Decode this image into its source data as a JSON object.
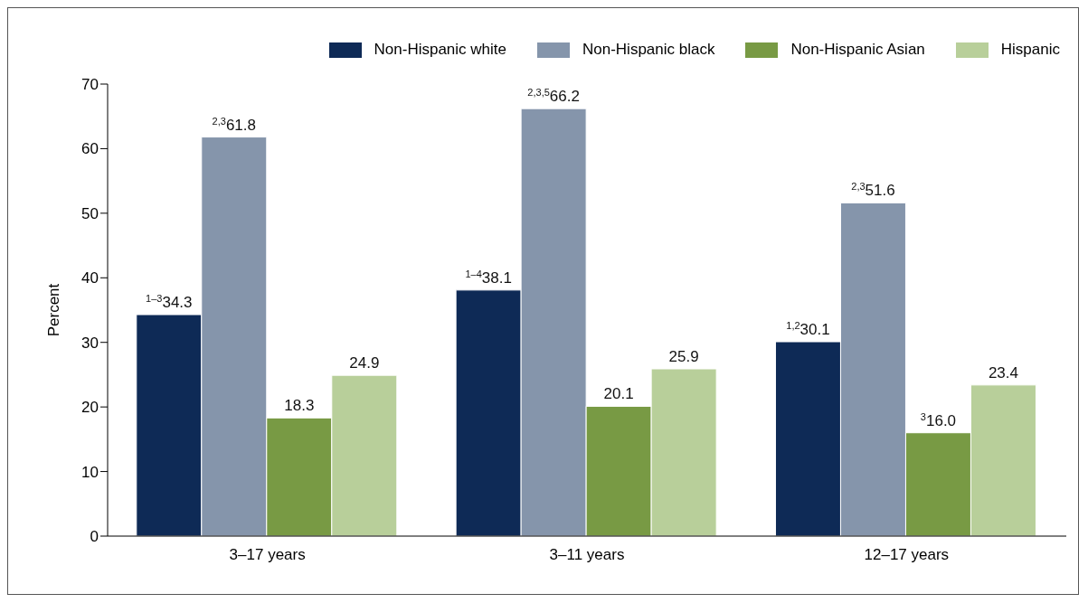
{
  "chart_data": {
    "type": "bar",
    "categories": [
      "3–17 years",
      "3–11 years",
      "12–17 years"
    ],
    "ylabel": "Percent",
    "ylim": [
      0,
      70
    ],
    "yticks": [
      0,
      10,
      20,
      30,
      40,
      50,
      60,
      70
    ],
    "grid": false,
    "legend": "top right",
    "series": [
      {
        "name": "Non-Hispanic white",
        "color": "#0e2a56",
        "values": [
          34.3,
          38.1,
          30.1
        ],
        "value_labels": [
          "$^{1–3}$34.3",
          "$^{1–4}$38.1",
          "$^{1,2}$30.1"
        ]
      },
      {
        "name": "Non-Hispanic black",
        "color": "#8595ab",
        "values": [
          61.8,
          66.2,
          51.6
        ],
        "value_labels": [
          "$^{2,3}$61.8",
          "$^{2,3,5}$66.2",
          "$^{2,3}$51.6"
        ]
      },
      {
        "name": "Non-Hispanic Asian",
        "color": "#789a44",
        "values": [
          18.3,
          20.1,
          16.0
        ],
        "value_labels": [
          "18.3",
          "20.1",
          "$^{3}$16.0"
        ]
      },
      {
        "name": "Hispanic",
        "color": "#b8cf9a",
        "values": [
          24.9,
          25.9,
          23.4
        ],
        "value_labels": [
          "24.9",
          "25.9",
          "23.4"
        ]
      }
    ]
  }
}
